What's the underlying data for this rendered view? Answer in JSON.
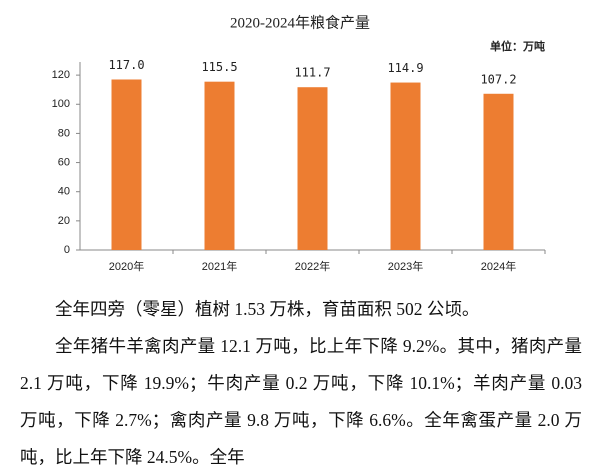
{
  "chart_data": {
    "type": "bar",
    "title": "2020-2024年粮食产量",
    "unit_label": "单位：万吨",
    "categories": [
      "2020年",
      "2021年",
      "2022年",
      "2023年",
      "2024年"
    ],
    "values": [
      117.0,
      115.5,
      111.7,
      114.9,
      107.2
    ],
    "value_labels": [
      "117.0",
      "115.5",
      "111.7",
      "114.9",
      "107.2"
    ],
    "color": "#ED7D31",
    "ylim": [
      0,
      129
    ],
    "yticks": [
      0,
      20,
      40,
      60,
      80,
      100,
      120
    ],
    "grid": false
  },
  "paragraphs": [
    "全年四旁（零星）植树 1.53 万株，育苗面积 502 公顷。",
    "全年猪牛羊禽肉产量 12.1 万吨，比上年下降 9.2%。其中，猪肉产量 2.1 万吨，下降 19.9%；牛肉产量 0.2 万吨，下降 10.1%；羊肉产量 0.03 万吨，下降 2.7%；禽肉产量 9.8 万吨，下降 6.6%。全年禽蛋产量 2.0 万吨，比上年下降 24.5%。全年"
  ]
}
